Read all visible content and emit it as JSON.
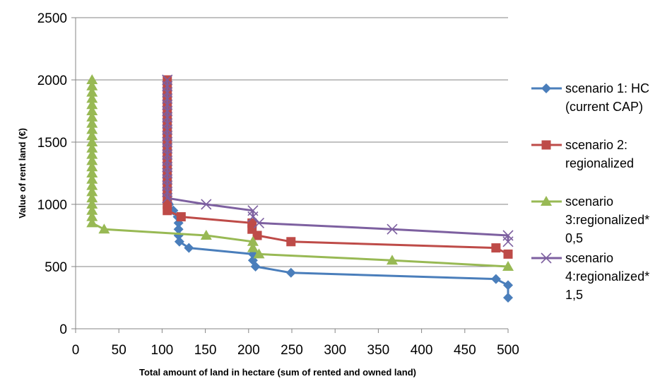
{
  "chart_data": {
    "type": "line",
    "title": "",
    "xlabel": "Total amount of land in hectare  (sum of rented and owned land)",
    "ylabel": "Value of rent land (€)",
    "xlim": [
      0,
      500
    ],
    "ylim": [
      0,
      2500
    ],
    "xticks": [
      0,
      50,
      100,
      150,
      200,
      250,
      300,
      350,
      400,
      450,
      500
    ],
    "yticks": [
      0,
      500,
      1000,
      1500,
      2000,
      2500
    ],
    "grid": "horizontal",
    "legend_position": "right",
    "series": [
      {
        "name": "scenario 1: HC (current CAP)",
        "legend_lines": [
          "scenario 1: HC",
          "(current CAP)"
        ],
        "color": "#4a7ebb",
        "marker": "diamond",
        "points": [
          [
            108,
            1000
          ],
          [
            113,
            950
          ],
          [
            118,
            900
          ],
          [
            119,
            850
          ],
          [
            119,
            800
          ],
          [
            119,
            750
          ],
          [
            120,
            700
          ],
          [
            131,
            650
          ],
          [
            205,
            600
          ],
          [
            205,
            550
          ],
          [
            208,
            500
          ],
          [
            249,
            450
          ],
          [
            486,
            400
          ],
          [
            500,
            350
          ],
          [
            500,
            250
          ]
        ]
      },
      {
        "name": "scenario 2: regionalized",
        "legend_lines": [
          "scenario 2:",
          "regionalized"
        ],
        "color": "#be4b48",
        "marker": "square",
        "points": [
          [
            106,
            2000
          ],
          [
            106,
            1950
          ],
          [
            106,
            1900
          ],
          [
            106,
            1850
          ],
          [
            106,
            1800
          ],
          [
            106,
            1750
          ],
          [
            106,
            1700
          ],
          [
            106,
            1650
          ],
          [
            106,
            1600
          ],
          [
            106,
            1550
          ],
          [
            106,
            1500
          ],
          [
            106,
            1450
          ],
          [
            106,
            1400
          ],
          [
            106,
            1350
          ],
          [
            106,
            1300
          ],
          [
            106,
            1250
          ],
          [
            106,
            1200
          ],
          [
            106,
            1150
          ],
          [
            106,
            1100
          ],
          [
            106,
            1050
          ],
          [
            106,
            1000
          ],
          [
            106,
            950
          ],
          [
            122,
            900
          ],
          [
            204,
            850
          ],
          [
            204,
            800
          ],
          [
            210,
            750
          ],
          [
            249,
            700
          ],
          [
            486,
            650
          ],
          [
            500,
            600
          ]
        ]
      },
      {
        "name": "scenario 3:regionalized*0,5",
        "legend_lines": [
          "scenario",
          "3:regionalized*",
          "0,5"
        ],
        "color": "#98b954",
        "marker": "triangle",
        "points": [
          [
            19,
            2000
          ],
          [
            19,
            1950
          ],
          [
            19,
            1900
          ],
          [
            19,
            1850
          ],
          [
            19,
            1800
          ],
          [
            19,
            1750
          ],
          [
            19,
            1700
          ],
          [
            19,
            1650
          ],
          [
            19,
            1600
          ],
          [
            19,
            1550
          ],
          [
            19,
            1500
          ],
          [
            19,
            1450
          ],
          [
            19,
            1400
          ],
          [
            19,
            1350
          ],
          [
            19,
            1300
          ],
          [
            19,
            1250
          ],
          [
            19,
            1200
          ],
          [
            19,
            1150
          ],
          [
            19,
            1100
          ],
          [
            19,
            1050
          ],
          [
            19,
            1000
          ],
          [
            19,
            950
          ],
          [
            19,
            900
          ],
          [
            19,
            850
          ],
          [
            33,
            800
          ],
          [
            151,
            750
          ],
          [
            205,
            700
          ],
          [
            205,
            650
          ],
          [
            212,
            600
          ],
          [
            366,
            550
          ],
          [
            500,
            500
          ]
        ]
      },
      {
        "name": "scenario 4:regionalized*1,5",
        "legend_lines": [
          "scenario",
          "4:regionalized*",
          "1,5"
        ],
        "color": "#7d60a0",
        "marker": "x",
        "points": [
          [
            106,
            2000
          ],
          [
            106,
            1950
          ],
          [
            106,
            1900
          ],
          [
            106,
            1850
          ],
          [
            106,
            1800
          ],
          [
            106,
            1750
          ],
          [
            106,
            1700
          ],
          [
            106,
            1650
          ],
          [
            106,
            1600
          ],
          [
            106,
            1550
          ],
          [
            106,
            1500
          ],
          [
            106,
            1450
          ],
          [
            106,
            1400
          ],
          [
            106,
            1350
          ],
          [
            106,
            1300
          ],
          [
            106,
            1250
          ],
          [
            106,
            1200
          ],
          [
            106,
            1150
          ],
          [
            106,
            1100
          ],
          [
            106,
            1050
          ],
          [
            151,
            1000
          ],
          [
            205,
            950
          ],
          [
            205,
            900
          ],
          [
            212,
            850
          ],
          [
            366,
            800
          ],
          [
            500,
            750
          ],
          [
            500,
            700
          ]
        ]
      }
    ]
  }
}
